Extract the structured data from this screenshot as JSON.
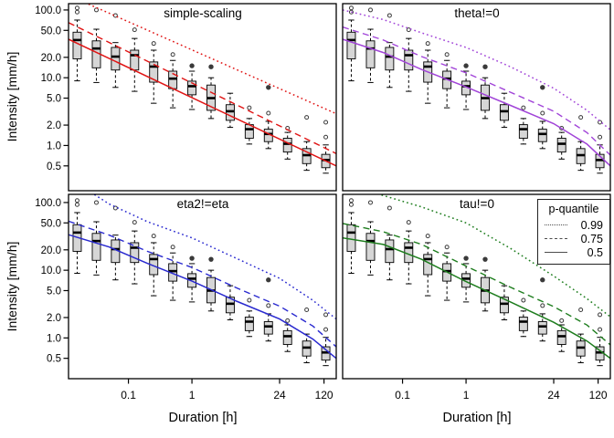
{
  "figure": {
    "xlabel": "Duration [h]",
    "ylabel": "Intensity [mm/h]",
    "background": "#ffffff"
  },
  "legend": {
    "title": "p-quantile",
    "entries": [
      {
        "label": "0.99",
        "style": "dotted"
      },
      {
        "label": "0.75",
        "style": "dashed"
      },
      {
        "label": "0.5",
        "style": "solid"
      }
    ]
  },
  "style": {
    "box_fill": "#d6d6d6",
    "box_stroke": "#000000",
    "outlier_stroke": "#3a3a3a",
    "panel_border": "#000000",
    "legend_line_color": "#4d4d4d"
  },
  "chart_data": {
    "type": "boxplot+line",
    "log_x": true,
    "log_y": true,
    "xlabel": "Duration [h]",
    "ylabel": "Intensity [mm/h]",
    "xlim": [
      0.0114,
      187
    ],
    "ylim_top": [
      0.215,
      124
    ],
    "ylim_bottom": [
      0.25,
      132
    ],
    "x_ticks": [
      0.1,
      1,
      24,
      120
    ],
    "x_tick_labels": [
      "0.1",
      "1",
      "24",
      "120"
    ],
    "y_ticks": [
      100,
      50,
      20,
      10,
      5,
      2,
      1,
      0.5
    ],
    "y_tick_labels": [
      "100.0",
      "50.0",
      "20.0",
      "10.0",
      "5.0",
      "2.0",
      "1.0",
      "0.5"
    ],
    "durations": [
      0.0156,
      0.0313,
      0.0625,
      0.125,
      0.25,
      0.5,
      1,
      2,
      4,
      8,
      16,
      32,
      64,
      128
    ],
    "boxplots": {
      "whisker_low": [
        9.0,
        8.5,
        7.2,
        6.3,
        4.2,
        3.6,
        3.4,
        2.5,
        1.85,
        1.05,
        0.9,
        0.63,
        0.43,
        0.39
      ],
      "q1": [
        19,
        14,
        13,
        13,
        8.6,
        6.9,
        5.6,
        3.3,
        2.35,
        1.28,
        1.14,
        0.8,
        0.54,
        0.47
      ],
      "median": [
        36,
        27,
        20.5,
        21.5,
        14.6,
        9.7,
        7.5,
        5.0,
        3.2,
        1.74,
        1.48,
        1.06,
        0.72,
        0.61
      ],
      "q3": [
        47,
        35,
        28,
        25.5,
        17.1,
        12.5,
        8.9,
        7.8,
        4.0,
        2.03,
        1.74,
        1.28,
        0.9,
        0.74
      ],
      "whisker_high": [
        71,
        52,
        33,
        38,
        25.5,
        18,
        12.5,
        10,
        5.9,
        2.5,
        2.27,
        1.56,
        1.14,
        1.02
      ],
      "outliers_open": [
        [
          93,
          107
        ],
        [
          100
        ],
        [
          83
        ],
        [
          51
        ],
        [
          32
        ],
        [
          22
        ],
        [],
        [],
        [],
        [
          3.6
        ],
        [
          3.0
        ],
        [
          1.8
        ],
        [
          2.6
        ],
        [
          1.33,
          2.2
        ]
      ],
      "outliers_filled": [
        [],
        [],
        [],
        [],
        [],
        [],
        [
          15
        ],
        [
          14.5
        ],
        [],
        [],
        [
          7.2
        ],
        [],
        [],
        []
      ]
    },
    "panels": [
      {
        "title": "simple-scaling",
        "color": "#e01414",
        "row": 0,
        "col": 0,
        "quantiles": {
          "q99": [
            [
              0.0114,
              165
            ],
            [
              187,
              2.95
            ]
          ],
          "q75": [
            [
              0.0114,
              65
            ],
            [
              187,
              0.76
            ]
          ],
          "q50": [
            [
              0.0114,
              37
            ],
            [
              187,
              0.5
            ]
          ]
        }
      },
      {
        "title": "theta!=0",
        "color": "#a144d8",
        "row": 0,
        "col": 1,
        "quantiles": {
          "q99": [
            [
              0.0114,
              100
            ],
            [
              0.05,
              72
            ],
            [
              0.2,
              46
            ],
            [
              1,
              28
            ],
            [
              5,
              14.5
            ],
            [
              24,
              7.0
            ],
            [
              80,
              3.3
            ],
            [
              187,
              1.7
            ]
          ],
          "q75": [
            [
              0.0114,
              56
            ],
            [
              0.05,
              36
            ],
            [
              0.2,
              20.5
            ],
            [
              1,
              11.8
            ],
            [
              5,
              6.1
            ],
            [
              24,
              3.2
            ],
            [
              80,
              1.55
            ],
            [
              187,
              0.72
            ]
          ],
          "q50": [
            [
              0.0114,
              37
            ],
            [
              0.05,
              23.5
            ],
            [
              0.2,
              13.2
            ],
            [
              1,
              7.3
            ],
            [
              5,
              3.9
            ],
            [
              24,
              2.1
            ],
            [
              80,
              1.05
            ],
            [
              187,
              0.5
            ]
          ]
        }
      },
      {
        "title": "eta2!=eta",
        "color": "#2929cf",
        "row": 1,
        "col": 0,
        "quantiles": {
          "q99": [
            [
              0.0114,
              230
            ],
            [
              0.05,
              95
            ],
            [
              0.2,
              52
            ],
            [
              1,
              30
            ],
            [
              5,
              15
            ],
            [
              24,
              7.6
            ],
            [
              80,
              3.6
            ],
            [
              187,
              1.9
            ]
          ],
          "q75": [
            [
              0.0114,
              53
            ],
            [
              0.05,
              33
            ],
            [
              0.2,
              19
            ],
            [
              1,
              11
            ],
            [
              5,
              5.5
            ],
            [
              24,
              2.95
            ],
            [
              80,
              1.5
            ],
            [
              187,
              0.74
            ]
          ],
          "q50": [
            [
              0.0114,
              33.5
            ],
            [
              0.05,
              22
            ],
            [
              0.2,
              12.6
            ],
            [
              1,
              6.9
            ],
            [
              5,
              3.5
            ],
            [
              24,
              1.9
            ],
            [
              80,
              0.96
            ],
            [
              187,
              0.5
            ]
          ]
        }
      },
      {
        "title": "tau!=0",
        "color": "#1e7d1e",
        "row": 1,
        "col": 1,
        "quantiles": {
          "q99": [
            [
              0.04,
              135
            ],
            [
              0.2,
              86
            ],
            [
              1,
              50
            ],
            [
              5,
              21
            ],
            [
              24,
              8.2
            ],
            [
              80,
              3.8
            ],
            [
              187,
              2.05
            ]
          ],
          "q75": [
            [
              0.0114,
              49
            ],
            [
              0.05,
              37
            ],
            [
              0.2,
              24
            ],
            [
              1,
              11.5
            ],
            [
              5,
              5.6
            ],
            [
              24,
              2.9
            ],
            [
              80,
              1.55
            ],
            [
              187,
              0.79
            ]
          ],
          "q50": [
            [
              0.0114,
              30
            ],
            [
              0.05,
              24
            ],
            [
              0.2,
              14.5
            ],
            [
              1,
              6.8
            ],
            [
              5,
              3.4
            ],
            [
              24,
              1.7
            ],
            [
              80,
              0.9
            ],
            [
              187,
              0.5
            ]
          ]
        }
      }
    ]
  }
}
